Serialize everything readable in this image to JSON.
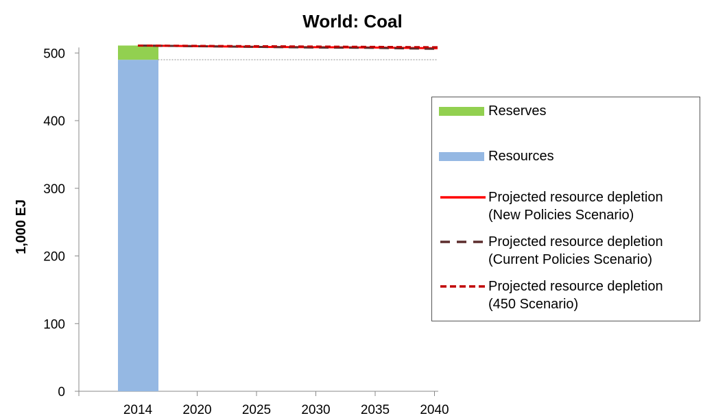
{
  "chart_data": {
    "type": "bar",
    "title": "World: Coal",
    "ylabel": "1,000 EJ",
    "xlabel": "",
    "ylim": [
      0,
      520
    ],
    "yticks": [
      0,
      100,
      200,
      300,
      400,
      500
    ],
    "x_tick_labels": [
      "2014",
      "2020",
      "2025",
      "2030",
      "2035",
      "2040"
    ],
    "gridlines": false,
    "legend_position": "right",
    "bars": [
      {
        "x": "2014",
        "stack": [
          {
            "name": "Resources",
            "value": 490,
            "color": "#95b8e3"
          },
          {
            "name": "Reserves",
            "value": 21,
            "color": "#92d050"
          }
        ]
      }
    ],
    "reference_line": {
      "value": 490,
      "style": "dotted",
      "color": "#999999"
    },
    "series": [
      {
        "name": "Projected resource depletion (New Policies Scenario)",
        "style": "solid",
        "color": "#ff0000",
        "x": [
          2014,
          2020,
          2025,
          2030,
          2035,
          2040
        ],
        "values": [
          511,
          510,
          509,
          508.5,
          508,
          507
        ]
      },
      {
        "name": "Projected resource depletion (Current Policies Scenario)",
        "style": "longdash",
        "color": "#5c2d2d",
        "x": [
          2014,
          2020,
          2025,
          2030,
          2035,
          2040
        ],
        "values": [
          511,
          510,
          509,
          508,
          507.5,
          506
        ]
      },
      {
        "name": "Projected resource depletion (450 Scenario)",
        "style": "dash",
        "color": "#c00000",
        "x": [
          2014,
          2020,
          2025,
          2030,
          2035,
          2040
        ],
        "values": [
          511,
          510.5,
          510,
          509.5,
          509,
          508.5
        ]
      }
    ],
    "legend": [
      {
        "key": "reserves",
        "lines": [
          "Reserves"
        ],
        "sample": "block",
        "color": "#92d050"
      },
      {
        "key": "resources",
        "lines": [
          "Resources"
        ],
        "sample": "block",
        "color": "#95b8e3"
      },
      {
        "key": "nps",
        "lines": [
          "Projected resource depletion",
          "(New Policies Scenario)"
        ],
        "sample": "solid",
        "color": "#ff0000"
      },
      {
        "key": "cps",
        "lines": [
          "Projected resource depletion",
          "(Current Policies Scenario)"
        ],
        "sample": "longdash",
        "color": "#5c2d2d"
      },
      {
        "key": "s450",
        "lines": [
          "Projected resource depletion",
          "(450 Scenario)"
        ],
        "sample": "dash",
        "color": "#c00000"
      }
    ]
  }
}
